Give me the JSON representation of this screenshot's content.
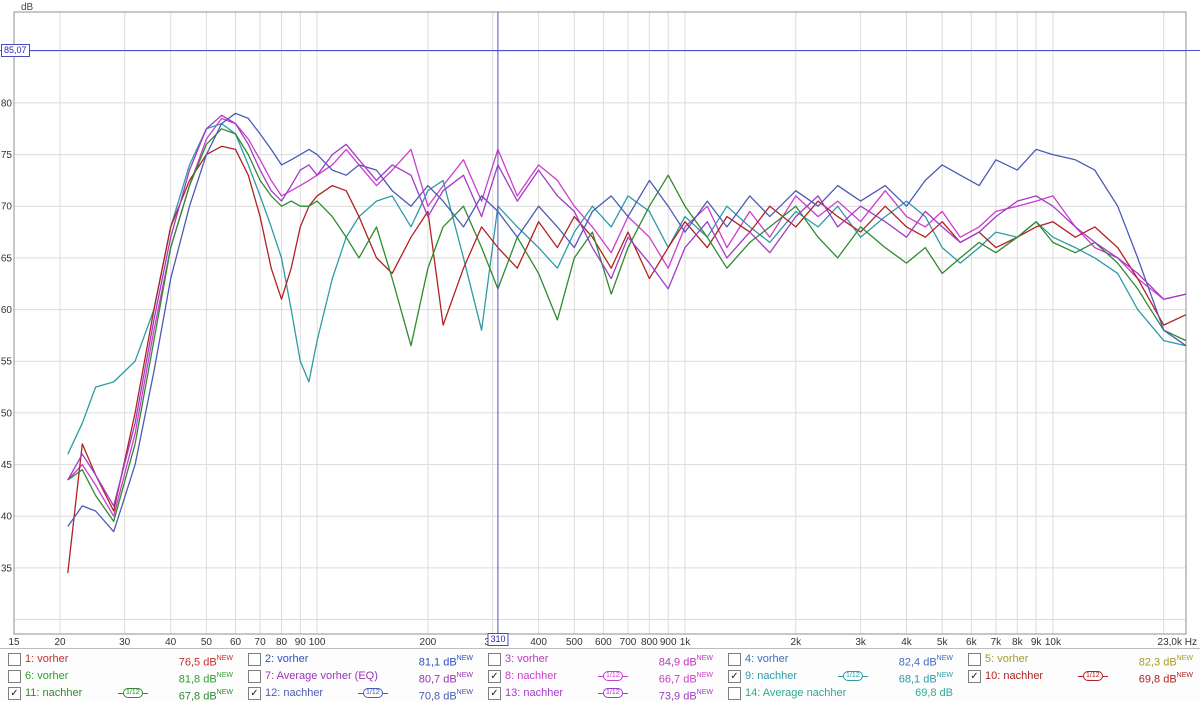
{
  "chart_data": {
    "type": "line",
    "x_axis": {
      "unit": "Hz",
      "scale": "log",
      "min": 15,
      "max": 23000,
      "ticks": [
        {
          "v": 15,
          "l": "15"
        },
        {
          "v": 20,
          "l": "20"
        },
        {
          "v": 30,
          "l": "30"
        },
        {
          "v": 40,
          "l": "40"
        },
        {
          "v": 50,
          "l": "50"
        },
        {
          "v": 60,
          "l": "60"
        },
        {
          "v": 70,
          "l": "70"
        },
        {
          "v": 80,
          "l": "80"
        },
        {
          "v": 90,
          "l": "90"
        },
        {
          "v": 100,
          "l": "100"
        },
        {
          "v": 200,
          "l": "200"
        },
        {
          "v": 300,
          "l": "300"
        },
        {
          "v": 400,
          "l": "400"
        },
        {
          "v": 500,
          "l": "500"
        },
        {
          "v": 600,
          "l": "600"
        },
        {
          "v": 700,
          "l": "700"
        },
        {
          "v": 800,
          "l": "800"
        },
        {
          "v": 900,
          "l": "900"
        },
        {
          "v": 1000,
          "l": "1k"
        },
        {
          "v": 2000,
          "l": "2k"
        },
        {
          "v": 3000,
          "l": "3k"
        },
        {
          "v": 4000,
          "l": "4k"
        },
        {
          "v": 5000,
          "l": "5k"
        },
        {
          "v": 6000,
          "l": "6k"
        },
        {
          "v": 7000,
          "l": "7k"
        },
        {
          "v": 8000,
          "l": "8k"
        },
        {
          "v": 9000,
          "l": "9k"
        },
        {
          "v": 10000,
          "l": "10k"
        },
        {
          "v": 23000,
          "l": "23,0k Hz"
        }
      ],
      "grid": [
        20,
        30,
        40,
        50,
        60,
        70,
        80,
        90,
        100,
        200,
        300,
        400,
        500,
        600,
        700,
        800,
        900,
        1000,
        2000,
        3000,
        4000,
        5000,
        6000,
        7000,
        8000,
        9000,
        10000,
        20000
      ]
    },
    "y_axis": {
      "unit": "dB",
      "min": 28.6,
      "max": 88.8,
      "ticks": [
        80,
        75,
        70,
        65,
        60,
        55,
        50,
        45,
        40,
        35
      ],
      "grid_min": 30,
      "grid_max": 85,
      "grid_step": 5
    },
    "cursor": {
      "x_hz": 310,
      "x_label": "310",
      "y_db": 85.07,
      "y_label": "85,07"
    },
    "frequencies": [
      21,
      23,
      25,
      28,
      32,
      36,
      40,
      45,
      50,
      55,
      60,
      65,
      70,
      75,
      80,
      85,
      90,
      95,
      100,
      110,
      120,
      130,
      145,
      160,
      180,
      200,
      220,
      250,
      280,
      310,
      350,
      400,
      450,
      500,
      560,
      630,
      700,
      800,
      900,
      1000,
      1150,
      1300,
      1500,
      1700,
      2000,
      2300,
      2600,
      3000,
      3500,
      4000,
      4500,
      5000,
      5600,
      6300,
      7000,
      8000,
      9000,
      10000,
      11500,
      13000,
      15000,
      17000,
      20000,
      23000
    ],
    "series": [
      {
        "id": 8,
        "name": "8: nachher",
        "color": "#CC3ECC",
        "values": [
          43.5,
          45,
          43,
          40,
          48,
          58,
          66,
          72,
          76.5,
          78.5,
          78,
          76.5,
          74.5,
          72.5,
          71,
          71.5,
          72,
          72.5,
          73,
          74,
          75.5,
          74,
          72,
          73.5,
          75.5,
          70,
          72,
          74.5,
          70.5,
          75.5,
          71,
          74,
          72.5,
          70,
          68,
          65.5,
          69,
          67,
          64,
          68,
          70,
          66,
          69.5,
          67,
          71,
          69,
          70.5,
          68.5,
          71.5,
          69,
          68,
          69.5,
          67,
          68,
          69.5,
          70,
          70.5,
          71,
          68,
          66,
          65,
          63,
          61,
          61.5
        ]
      },
      {
        "id": 9,
        "name": "9: nachher",
        "color": "#2E9BA6",
        "values": [
          46,
          49,
          52.5,
          53,
          55,
          60,
          68,
          74,
          77.5,
          78,
          77,
          74,
          71,
          68,
          65,
          60,
          55,
          53,
          57,
          63,
          67,
          69,
          70.5,
          71,
          68,
          71.5,
          72.5,
          65,
          58,
          70,
          68,
          66,
          64,
          67.5,
          70,
          68,
          71,
          69.5,
          66,
          69,
          67,
          70,
          68,
          66.5,
          69.5,
          68,
          70,
          67,
          69,
          70.5,
          69,
          66,
          64.5,
          66,
          67.5,
          67,
          68.5,
          67,
          66,
          65,
          63.5,
          60,
          57,
          56.5
        ]
      },
      {
        "id": 10,
        "name": "10: nachher",
        "color": "#B22222",
        "values": [
          34.5,
          47,
          44,
          40.5,
          50,
          60,
          68,
          72.5,
          75,
          75.8,
          75.5,
          73,
          69,
          64,
          61,
          64,
          68,
          70,
          71,
          72,
          71.5,
          69,
          65,
          63.5,
          67,
          69.5,
          58.5,
          64,
          68,
          66,
          64,
          68.5,
          66,
          69,
          67,
          64,
          67.5,
          63,
          66,
          68.5,
          66,
          69,
          67.5,
          70,
          68,
          70.5,
          69,
          67.5,
          70,
          68,
          67,
          68.5,
          66.5,
          67.5,
          66,
          67,
          68,
          68.5,
          67,
          68,
          66,
          63,
          58.5,
          59.5
        ]
      },
      {
        "id": 11,
        "name": "11: nachher",
        "color": "#2E8B2E",
        "values": [
          43.5,
          44.5,
          42,
          39.5,
          47,
          57,
          66,
          72,
          76,
          77.5,
          77,
          75,
          72.5,
          71,
          70,
          70.5,
          70,
          70,
          70.5,
          69,
          67,
          65,
          68,
          63,
          56.5,
          64,
          68,
          70,
          66,
          62,
          67,
          63.5,
          59,
          65,
          67.5,
          61.5,
          66,
          70,
          73,
          70,
          67,
          64,
          66.5,
          68,
          70,
          67,
          65,
          68,
          66,
          64.5,
          66,
          63.5,
          65,
          66.5,
          65.5,
          67,
          68.5,
          66.5,
          65.5,
          66.5,
          64.5,
          62,
          58,
          57
        ]
      },
      {
        "id": 12,
        "name": "12: nachher",
        "color": "#4A5BB5",
        "values": [
          39,
          41,
          40.5,
          38.5,
          45,
          54,
          63,
          70,
          75,
          78,
          79,
          78.5,
          77,
          75.5,
          74,
          74.5,
          75,
          75.5,
          75,
          73.5,
          73,
          74,
          73.5,
          71.5,
          70,
          72,
          70.5,
          68,
          71,
          69.5,
          67,
          70,
          68,
          66,
          69.5,
          71,
          69,
          72.5,
          70,
          67.5,
          70.5,
          68,
          71,
          69,
          71.5,
          70,
          72,
          70.5,
          72,
          70,
          72.5,
          74,
          73,
          72,
          74.5,
          73.5,
          75.5,
          75,
          74.5,
          73.5,
          70,
          65,
          58,
          56.5
        ]
      },
      {
        "id": 13,
        "name": "13: nachher",
        "color": "#A23BC8",
        "values": [
          43.5,
          46,
          44,
          41,
          49,
          59,
          67,
          73.5,
          77.5,
          78.8,
          78,
          76,
          73.5,
          71.5,
          70.5,
          72,
          73.5,
          74,
          73,
          75,
          76,
          74.5,
          72.5,
          74,
          73,
          69,
          71.5,
          73,
          69,
          74,
          70.5,
          73.5,
          71,
          69.5,
          66,
          63,
          67,
          64.5,
          62,
          66,
          68.5,
          65,
          67.5,
          65.5,
          69,
          71,
          68,
          70,
          68.5,
          67,
          69.5,
          68,
          66.5,
          67.5,
          69,
          70.5,
          71,
          70,
          68,
          66.5,
          65,
          63.5,
          61,
          61.5
        ]
      }
    ],
    "legend": [
      {
        "label": "1: vorher",
        "color": "#C22E2E",
        "checked": false,
        "smoothing": null,
        "value": "76,5 dB",
        "new_badge": "NEW"
      },
      {
        "label": "2: vorher",
        "color": "#2E4EC2",
        "checked": false,
        "smoothing": null,
        "value": "81,1 dB",
        "new_badge": "NEW"
      },
      {
        "label": "3: vorher",
        "color": "#BE36BE",
        "checked": false,
        "smoothing": null,
        "value": "84,9 dB",
        "new_badge": "NEW"
      },
      {
        "label": "4: vorher",
        "color": "#3E6CC0",
        "checked": false,
        "smoothing": null,
        "value": "82,4 dB",
        "new_badge": "NEW"
      },
      {
        "label": "5: vorher",
        "color": "#A89A28",
        "checked": false,
        "smoothing": null,
        "value": "82,3 dB",
        "new_badge": "NEW"
      },
      {
        "label": "6: vorher",
        "color": "#2E9E2E",
        "checked": false,
        "smoothing": null,
        "value": "81,8 dB",
        "new_badge": "NEW"
      },
      {
        "label": "7: Average vorher (EQ)",
        "color": "#9A33B8",
        "checked": false,
        "smoothing": null,
        "value": "80,7 dB",
        "new_badge": "NEW"
      },
      {
        "label": "8: nachher",
        "color": "#CC3ECC",
        "checked": true,
        "smoothing": "1/12",
        "value": "66,7 dB",
        "new_badge": "NEW"
      },
      {
        "label": "9: nachher",
        "color": "#2E9BA6",
        "checked": true,
        "smoothing": "1/12",
        "value": "68,1 dB",
        "new_badge": "NEW"
      },
      {
        "label": "10: nachher",
        "color": "#B22222",
        "checked": true,
        "smoothing": "1/12",
        "value": "69,8 dB",
        "new_badge": "NEW"
      },
      {
        "label": "11: nachher",
        "color": "#2E8B2E",
        "checked": true,
        "smoothing": "1/12",
        "value": "67,8 dB",
        "new_badge": "NEW"
      },
      {
        "label": "12: nachher",
        "color": "#4A5BB5",
        "checked": true,
        "smoothing": "1/12",
        "value": "70,8 dB",
        "new_badge": "NEW"
      },
      {
        "label": "13: nachher",
        "color": "#A23BC8",
        "checked": true,
        "smoothing": "1/12",
        "value": "73,9 dB",
        "new_badge": "NEW"
      },
      {
        "label": "14: Average nachher",
        "color": "#2FA893",
        "checked": false,
        "smoothing": null,
        "value": "69,8 dB",
        "new_badge": null
      }
    ]
  }
}
